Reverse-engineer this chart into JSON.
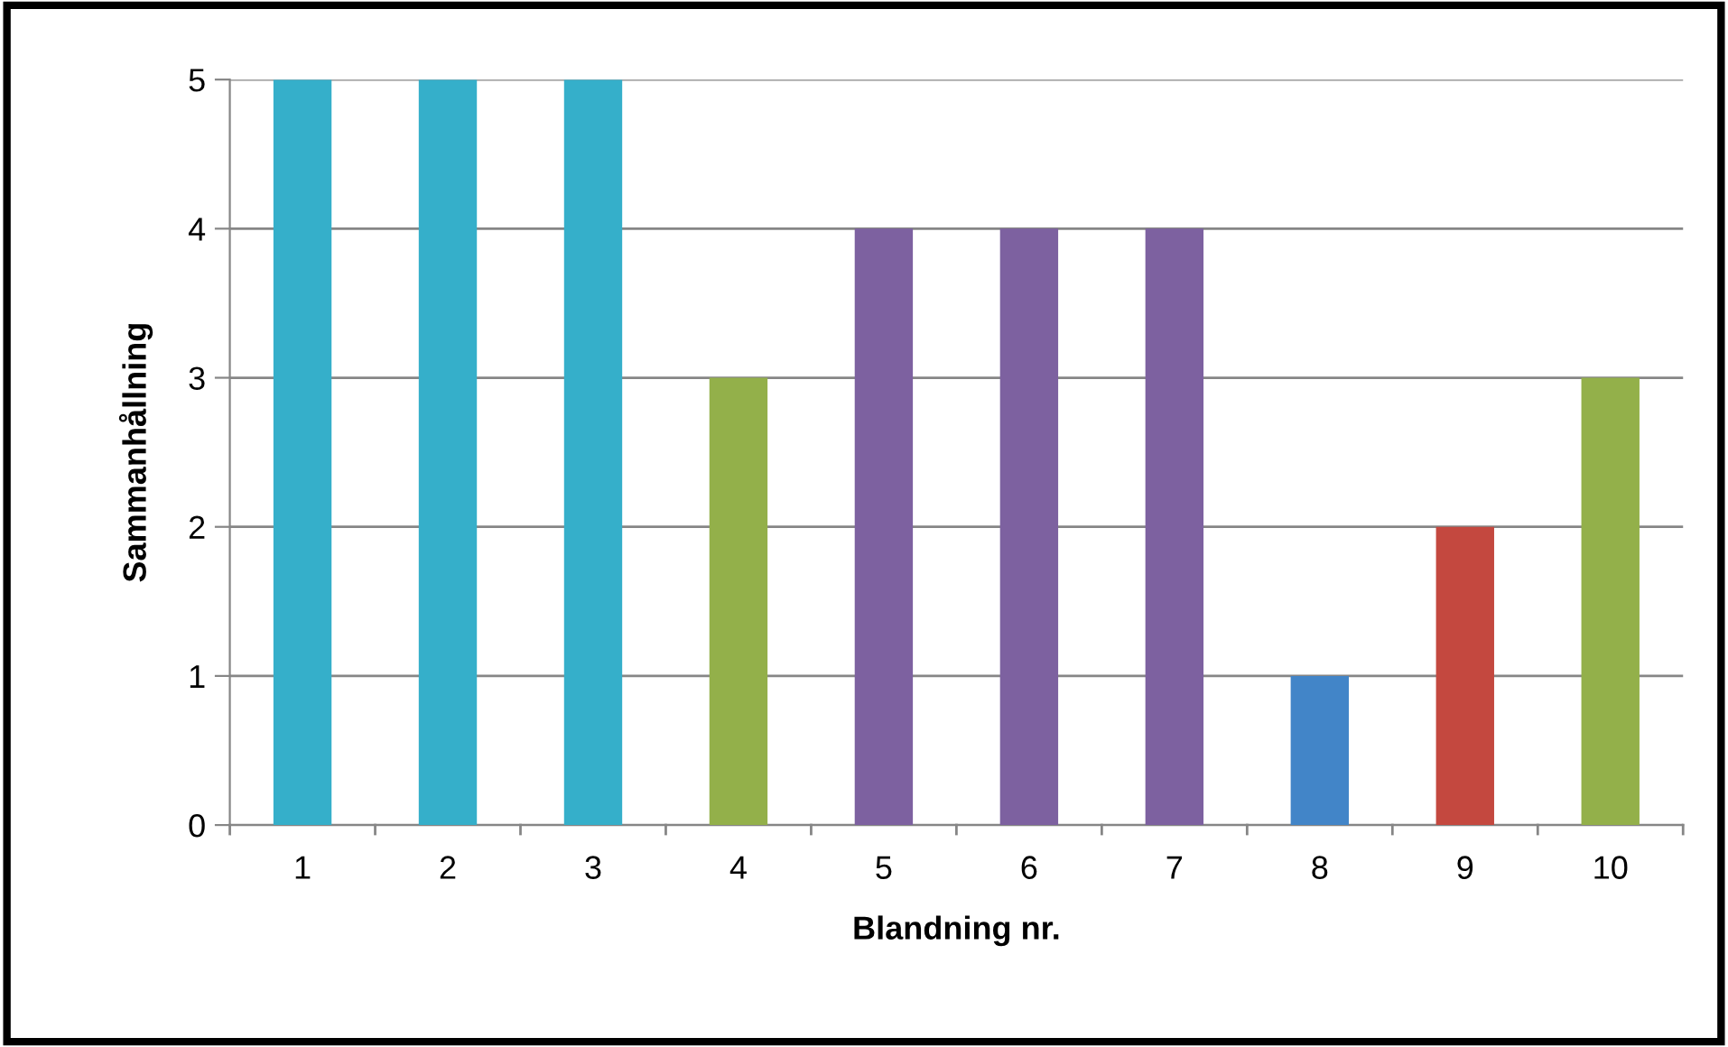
{
  "chart_data": {
    "type": "bar",
    "xlabel": "Blandning nr.",
    "ylabel": "Sammanhållning",
    "categories": [
      "1",
      "2",
      "3",
      "4",
      "5",
      "6",
      "7",
      "8",
      "9",
      "10"
    ],
    "values": [
      5,
      5,
      5,
      3,
      4,
      4,
      4,
      1,
      2,
      3
    ],
    "colors": [
      "#35afca",
      "#35afca",
      "#35afca",
      "#93b04a",
      "#7d61a0",
      "#7d61a0",
      "#7d61a0",
      "#4285c8",
      "#c4483f",
      "#93b04a"
    ],
    "ylim": [
      0,
      5
    ],
    "yticks": [
      0,
      1,
      2,
      3,
      4,
      5
    ],
    "grid": "y"
  }
}
